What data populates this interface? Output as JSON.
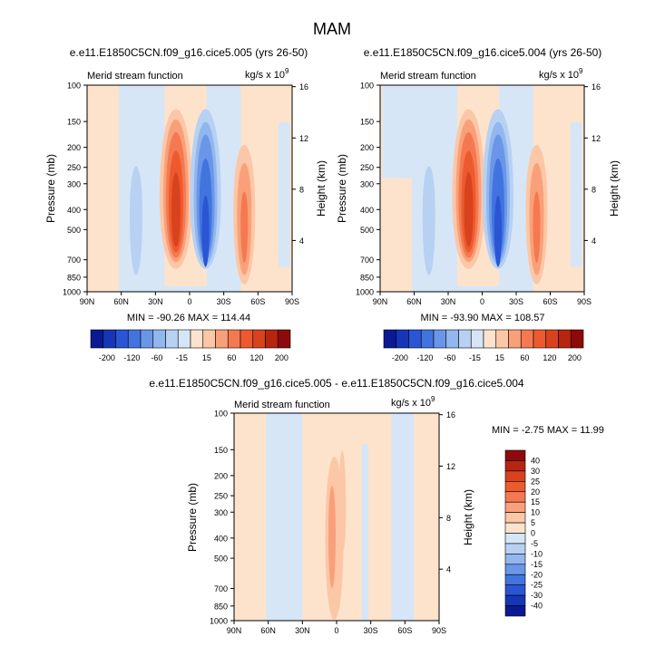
{
  "page_title": "MAM",
  "units_label": "kg/s x 10",
  "units_exponent": "9",
  "colors": {
    "pos": [
      "#fde3cc",
      "#fbc7a6",
      "#f9a07a",
      "#f57950",
      "#ed5a2f",
      "#d8431d",
      "#b8250f",
      "#8e0a0a"
    ],
    "neg": [
      "#d6e6f7",
      "#b7d1f3",
      "#92b6ee",
      "#6a96e8",
      "#4274e0",
      "#2a55d4",
      "#1536b8",
      "#0a1a92"
    ],
    "zero": "#ffffff"
  },
  "chart_data": [
    {
      "type": "heatmap",
      "title": "e.e11.E1850C5CN.f09_g16.cice5.005 (yrs 26-50)",
      "left_label": "Merid stream function",
      "ylabel": "Pressure (mb)",
      "y2label": "Height (km)",
      "x_ticks": [
        "90N",
        "60N",
        "30N",
        "0",
        "30S",
        "60S",
        "90S"
      ],
      "y_ticks": [
        "100",
        "150",
        "200",
        "250",
        "300",
        "400",
        "500",
        "700",
        "850",
        "1000"
      ],
      "y2_ticks": [
        "16",
        "12",
        "8",
        "4"
      ],
      "stats": "MIN = -90.26   MAX = 114.44",
      "lat_range": [
        90,
        -90
      ],
      "pressure_range_mb": [
        100,
        1000
      ],
      "cells": [
        {
          "lat": -35,
          "p": 400,
          "level": 2,
          "type": "pos"
        },
        {
          "lat": -10,
          "p": 350,
          "level": 4,
          "type": "pos"
        },
        {
          "lat": 12,
          "p": 450,
          "level": 4,
          "type": "neg"
        },
        {
          "lat": -50,
          "p": 450,
          "level": 3,
          "type": "pos"
        },
        {
          "lat": 50,
          "p": 400,
          "level": 2,
          "type": "neg"
        }
      ]
    },
    {
      "type": "heatmap",
      "title": "e.e11.E1850C5CN.f09_g16.cice5.004 (yrs 26-50)",
      "left_label": "Merid stream function",
      "ylabel": "Pressure (mb)",
      "y2label": "Height (km)",
      "x_ticks": [
        "90N",
        "60N",
        "30N",
        "0",
        "30S",
        "60S",
        "90S"
      ],
      "y_ticks": [
        "100",
        "150",
        "200",
        "250",
        "300",
        "400",
        "500",
        "700",
        "850",
        "1000"
      ],
      "y2_ticks": [
        "16",
        "12",
        "8",
        "4"
      ],
      "stats": "MIN = -93.90   MAX = 108.57",
      "lat_range": [
        90,
        -90
      ],
      "pressure_range_mb": [
        100,
        1000
      ],
      "cells": []
    },
    {
      "type": "heatmap",
      "title": "e.e11.E1850C5CN.f09_g16.cice5.005 - e.e11.E1850C5CN.f09_g16.cice5.004",
      "left_label": "Merid stream function",
      "ylabel": "Pressure (mb)",
      "y2label": "Height (km)",
      "x_ticks": [
        "90N",
        "60N",
        "30N",
        "0",
        "30S",
        "60S",
        "90S"
      ],
      "y_ticks": [
        "100",
        "150",
        "200",
        "250",
        "300",
        "400",
        "500",
        "700",
        "850",
        "1000"
      ],
      "y2_ticks": [
        "16",
        "12",
        "8",
        "4"
      ],
      "stats": "MIN =  -2.75   MAX =  11.99",
      "lat_range": [
        90,
        -90
      ],
      "pressure_range_mb": [
        100,
        1000
      ]
    }
  ],
  "colorbar_top": {
    "labels": [
      "-200",
      "-120",
      "-60",
      "-15",
      "15",
      "60",
      "120",
      "200"
    ]
  },
  "colorbar_diff": {
    "labels": [
      "40",
      "30",
      "25",
      "20",
      "15",
      "10",
      "5",
      "0",
      "-5",
      "-10",
      "-15",
      "-20",
      "-25",
      "-30",
      "-40"
    ]
  }
}
